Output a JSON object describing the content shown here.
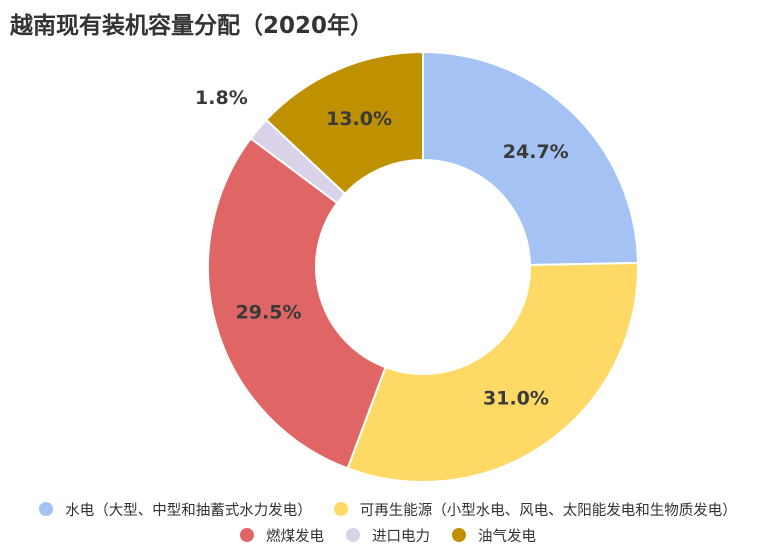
{
  "chart_data": {
    "type": "pie",
    "variant": "donut",
    "title": "越南现有装机容量分配（2020年）",
    "slices": [
      {
        "label": "水电（大型、中型和抽蓄式水力发电）",
        "value": 24.7,
        "display": "24.7%",
        "color": "#a4c2f4"
      },
      {
        "label": "可再生能源（小型水电、风电、太阳能发电和生物质发电）",
        "value": 31.0,
        "display": "31.0%",
        "color": "#ffd966"
      },
      {
        "label": "燃煤发电",
        "value": 29.5,
        "display": "29.5%",
        "color": "#e06666"
      },
      {
        "label": "进口电力",
        "value": 1.8,
        "display": "1.8%",
        "color": "#d9d2e9"
      },
      {
        "label": "油气发电",
        "value": 13.0,
        "display": "13.0%",
        "color": "#bf9000"
      }
    ],
    "legend_placement": "bottom"
  }
}
